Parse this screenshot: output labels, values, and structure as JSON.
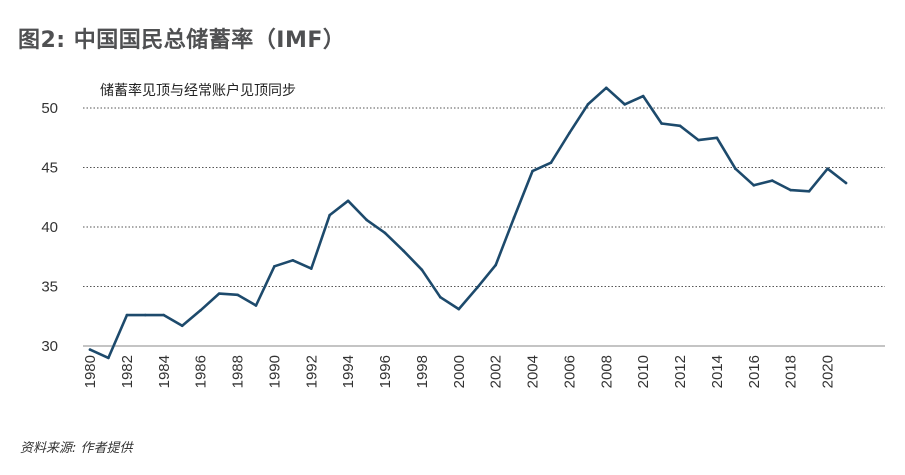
{
  "title": "图2: 中国国民总储蓄率（IMF）",
  "source": "资料来源: 作者提供",
  "colors": {
    "line": "#1d4a6c",
    "grid": "#555555",
    "axis": "#888888",
    "title": "#4f5052"
  },
  "chart_data": {
    "type": "line",
    "title": "图2: 中国国民总储蓄率（IMF）",
    "annotation": "储蓄率见顶与经常账户见顶同步",
    "xlabel": "",
    "ylabel": "",
    "xlim": [
      1980,
      2021
    ],
    "ylim": [
      30,
      52
    ],
    "yticks": [
      30,
      35,
      40,
      45,
      50
    ],
    "xticks": [
      1980,
      1982,
      1984,
      1986,
      1988,
      1990,
      1992,
      1994,
      1996,
      1998,
      2000,
      2002,
      2004,
      2006,
      2008,
      2010,
      2012,
      2014,
      2016,
      2018,
      2020
    ],
    "grid": "horizontal dotted",
    "legend": "none",
    "series": [
      {
        "x": [
          1980,
          1981,
          1982,
          1983,
          1984,
          1985,
          1986,
          1987,
          1988,
          1989,
          1990,
          1991,
          1992,
          1993,
          1994,
          1995,
          1996,
          1997,
          1998,
          1999,
          2000,
          2001,
          2002,
          2003,
          2004,
          2005,
          2006,
          2007,
          2008,
          2009,
          2010,
          2011,
          2012,
          2013,
          2014,
          2015,
          2016,
          2017,
          2018,
          2019,
          2020,
          2021
        ],
        "values": [
          29.7,
          29.0,
          32.6,
          32.6,
          32.6,
          31.7,
          33.0,
          34.4,
          34.3,
          33.4,
          36.7,
          37.2,
          36.5,
          41.0,
          42.2,
          40.6,
          39.5,
          38.0,
          36.4,
          34.1,
          33.1,
          34.9,
          36.8,
          40.8,
          44.7,
          45.4,
          47.9,
          50.3,
          51.7,
          50.3,
          51.0,
          48.7,
          48.5,
          47.3,
          47.5,
          44.9,
          43.5,
          43.9,
          43.1,
          43.0,
          44.9,
          43.7
        ]
      }
    ]
  }
}
